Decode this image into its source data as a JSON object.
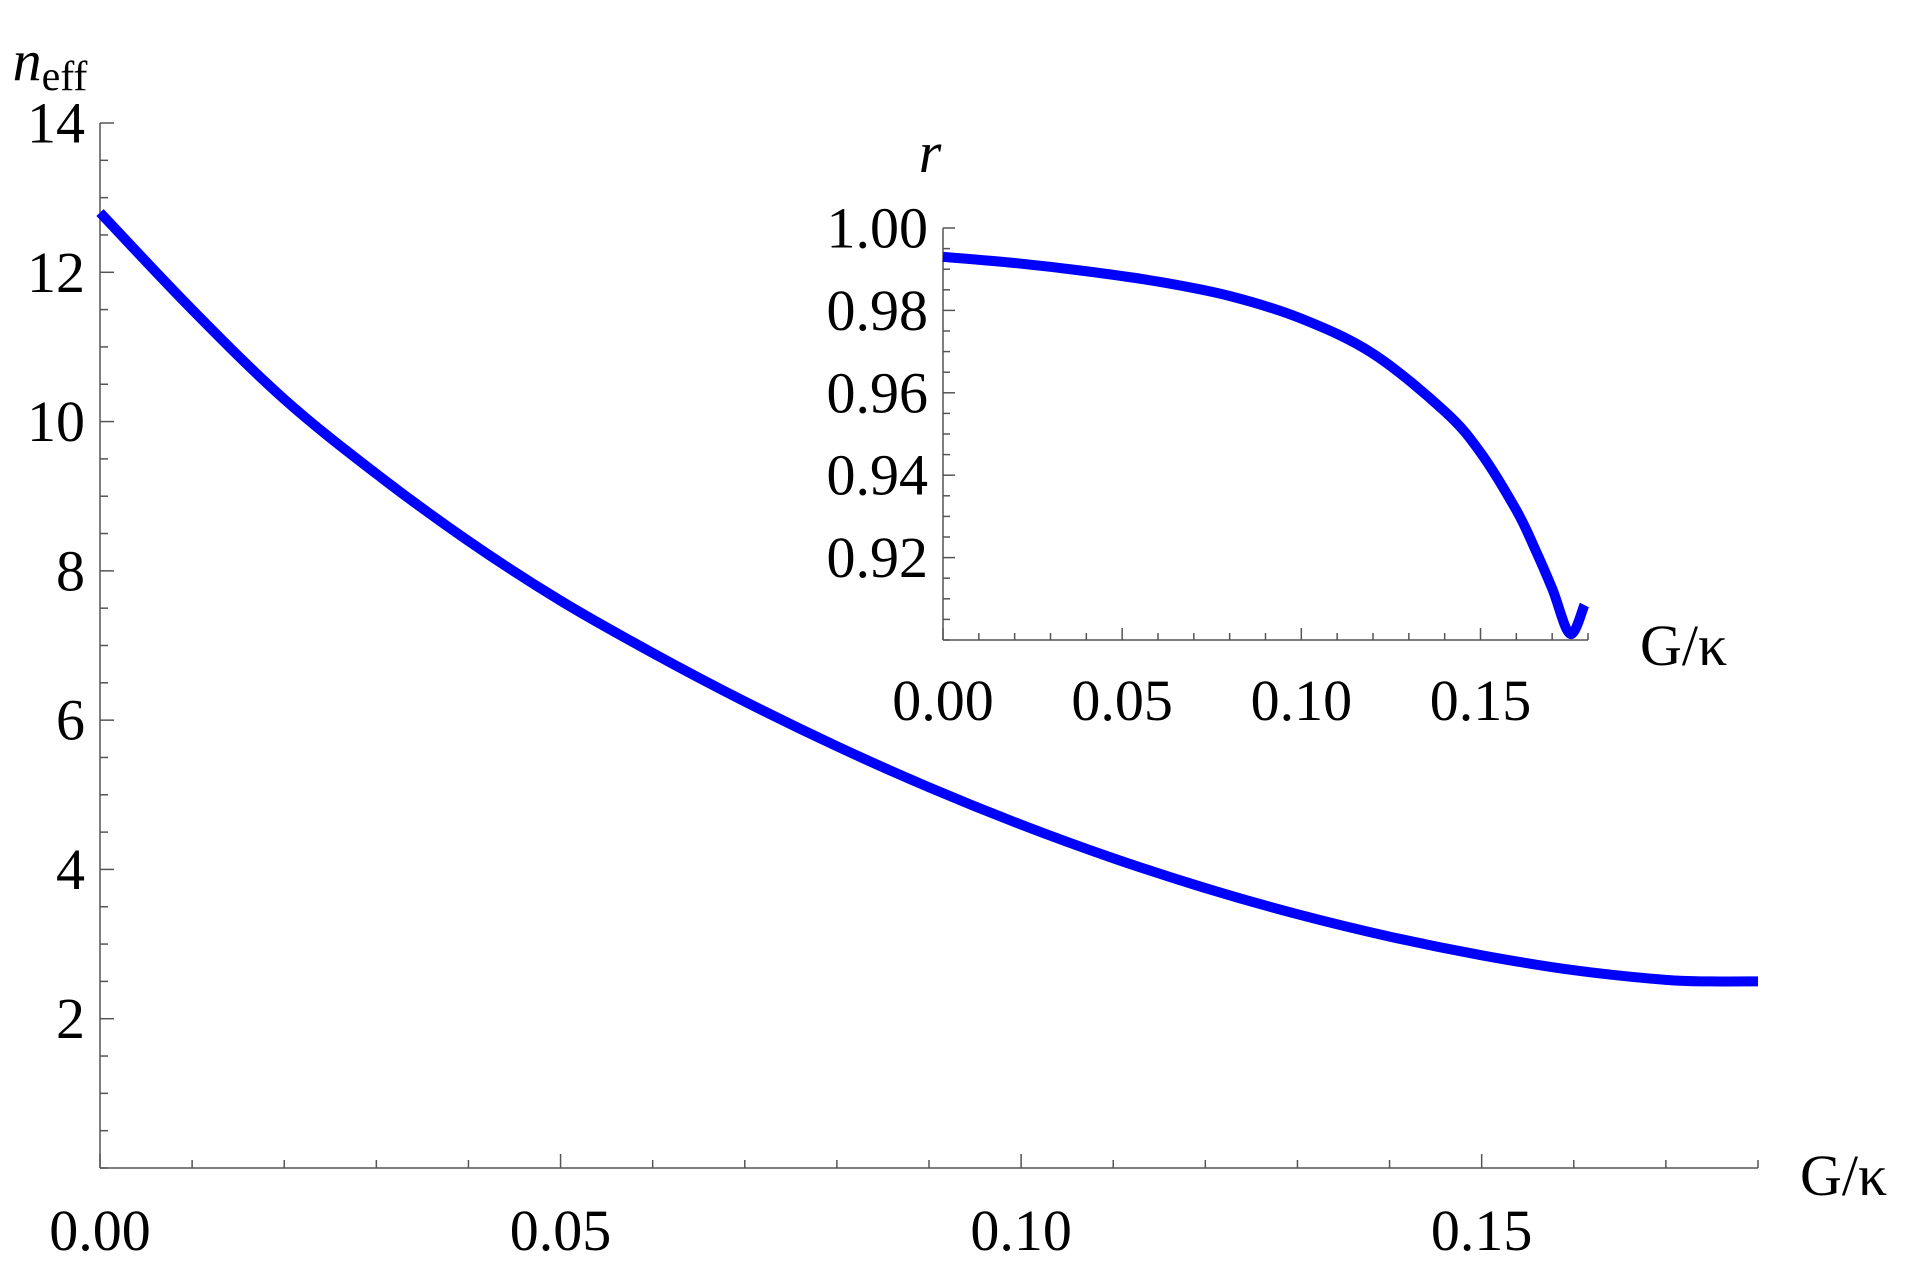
{
  "chart_data": [
    {
      "type": "line",
      "role": "main",
      "xlabel": "G/κ",
      "ylabel": "n",
      "ylabel_sub": "eff",
      "xlim": [
        0,
        0.18
      ],
      "ylim": [
        0,
        14
      ],
      "xticks": [
        0.0,
        0.05,
        0.1,
        0.15
      ],
      "xtick_labels": [
        "0.00",
        "0.05",
        "0.10",
        "0.15"
      ],
      "yticks": [
        2,
        4,
        6,
        8,
        10,
        12,
        14
      ],
      "ytick_labels": [
        "2",
        "4",
        "6",
        "8",
        "10",
        "12",
        "14"
      ],
      "grid": false,
      "series": [
        {
          "color": "#0000ff",
          "x": [
            0.0,
            0.01,
            0.02,
            0.03,
            0.04,
            0.05,
            0.06,
            0.07,
            0.08,
            0.09,
            0.1,
            0.11,
            0.12,
            0.13,
            0.14,
            0.15,
            0.16,
            0.17,
            0.175,
            0.18
          ],
          "y": [
            12.8,
            11.5,
            10.3,
            9.3,
            8.4,
            7.6,
            6.9,
            6.25,
            5.65,
            5.1,
            4.6,
            4.15,
            3.75,
            3.4,
            3.1,
            2.85,
            2.65,
            2.52,
            2.5,
            2.5
          ]
        }
      ]
    },
    {
      "type": "line",
      "role": "inset",
      "xlabel": "G/κ",
      "ylabel": "r",
      "xlim": [
        0,
        0.18
      ],
      "ylim": [
        0.9,
        1.0
      ],
      "xticks": [
        0.0,
        0.05,
        0.1,
        0.15
      ],
      "xtick_labels": [
        "0.00",
        "0.05",
        "0.10",
        "0.15"
      ],
      "yticks": [
        0.92,
        0.94,
        0.96,
        0.98,
        1.0
      ],
      "ytick_labels": [
        "0.92",
        "0.94",
        "0.96",
        "0.98",
        "1.00"
      ],
      "grid": false,
      "series": [
        {
          "color": "#0000ff",
          "x": [
            0.0,
            0.02,
            0.04,
            0.06,
            0.08,
            0.1,
            0.12,
            0.14,
            0.15,
            0.16,
            0.165,
            0.17,
            0.175,
            0.179
          ],
          "y": [
            0.993,
            0.9915,
            0.9895,
            0.987,
            0.9835,
            0.978,
            0.9695,
            0.9555,
            0.9455,
            0.9315,
            0.9225,
            0.9125,
            0.9015,
            0.9085
          ]
        }
      ]
    }
  ]
}
